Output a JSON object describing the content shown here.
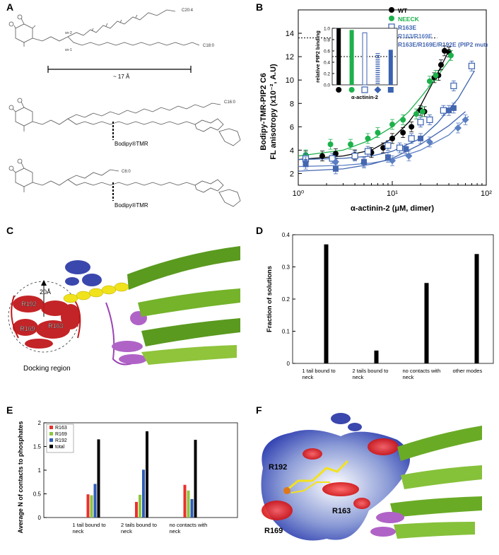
{
  "panel_labels": {
    "a": "A",
    "b": "B",
    "c": "C",
    "d": "D",
    "e": "E",
    "f": "F"
  },
  "panel_a": {
    "chain_labels_top": [
      "C20:4",
      "C18:0"
    ],
    "glycerol_marks": [
      "sn-2",
      "sn-1"
    ],
    "distance_label": "~ 17 Å",
    "chain_label_mid": "C16:0",
    "chain_label_bottom": "C6:0",
    "fluor_label": "Bodipy®TMR"
  },
  "panel_c": {
    "scale_label": "20Å",
    "residues": [
      "R192",
      "R169",
      "R163"
    ],
    "region_label": "Docking region"
  },
  "panel_f": {
    "residues": [
      "R192",
      "R169",
      "R163"
    ]
  },
  "chart_data": [
    {
      "id": "B",
      "type": "scatter",
      "xlabel": "α-actinin-2 (μM, dimer)",
      "ylabel_line1": "Bodipy-TMR-PIP2 C6",
      "ylabel_line2": "FL anisotropy (x10⁻², A.U)",
      "xscale": "log",
      "xlim": [
        1,
        100
      ],
      "ylim": [
        1,
        16
      ],
      "xticks": [
        "10⁰",
        "10¹",
        "10²"
      ],
      "yticks": [
        "2",
        "4",
        "6",
        "8",
        "10",
        "12",
        "14"
      ],
      "legend": [
        "WT",
        "NEECK",
        "R163E",
        "R163/R169E",
        "R163E/R169E/R192E (PIP2 mut)"
      ],
      "series": [
        {
          "name": "WT",
          "color": "#000000",
          "marker": "circle-filled",
          "x": [
            1.2,
            1.8,
            2.5,
            4,
            6,
            8,
            10,
            13,
            16,
            20,
            22,
            28,
            31,
            33,
            36,
            40
          ],
          "y": [
            3.5,
            3.5,
            3.7,
            3.6,
            3.8,
            4.2,
            5,
            5.5,
            6,
            7.4,
            7.3,
            10.2,
            10.4,
            11.3,
            12.5,
            12.4
          ]
        },
        {
          "name": "NEECK",
          "color": "#1db14b",
          "marker": "circle-filled",
          "x": [
            1.2,
            2.2,
            3.6,
            5.5,
            7,
            10,
            13,
            18,
            21,
            25,
            29,
            42
          ],
          "y": [
            3.6,
            4.5,
            4.5,
            5,
            5.5,
            6.2,
            6.6,
            7.1,
            7.3,
            9.9,
            10.4,
            12.1
          ]
        },
        {
          "name": "R163E",
          "color": "#3a62b0",
          "marker": "square-open",
          "x": [
            1.2,
            2.3,
            4,
            5.5,
            9,
            12,
            16,
            20,
            25,
            35,
            45,
            70
          ],
          "y": [
            3.3,
            3.3,
            3.5,
            3.9,
            4.4,
            4.2,
            5,
            6.4,
            6.6,
            7.4,
            9.5,
            11.2
          ]
        },
        {
          "name": "R163/R169E",
          "color": "#5b7fc4",
          "marker": "diamond-filled",
          "x": [
            1.2,
            2.5,
            5,
            10,
            15,
            25,
            50,
            60
          ],
          "y": [
            3.0,
            3.0,
            2.9,
            3.1,
            3.5,
            4.7,
            5.9,
            6.6
          ]
        },
        {
          "name": "R163E/R169E/R192E (PIP2 mut)",
          "color": "#4466b0",
          "marker": "square-filled",
          "x": [
            1.2,
            2.5,
            5,
            9,
            14,
            20,
            40,
            45
          ],
          "y": [
            2.8,
            2.4,
            3.0,
            3.4,
            4.1,
            5.0,
            7.4,
            7.6
          ]
        }
      ],
      "fits": [
        {
          "name": "WT",
          "color": "#000000",
          "x": [
            1,
            3,
            6,
            10,
            15,
            20,
            30,
            40
          ],
          "y": [
            3.2,
            3.5,
            4.0,
            5.0,
            6.4,
            7.8,
            10.5,
            12.5
          ]
        },
        {
          "name": "NEECK",
          "color": "#1db14b",
          "x": [
            1,
            3,
            6,
            10,
            15,
            20,
            30,
            45
          ],
          "y": [
            3.5,
            4.0,
            4.9,
            6.0,
            7.3,
            8.5,
            10.3,
            12.2
          ]
        },
        {
          "name": "R163E",
          "color": "#3a62b0",
          "x": [
            1,
            3,
            6,
            10,
            20,
            30,
            50,
            75
          ],
          "y": [
            3.2,
            3.3,
            3.5,
            3.9,
            5.0,
            6.3,
            8.4,
            10.8
          ]
        },
        {
          "name": "R163/R169E",
          "color": "#5b7fc4",
          "x": [
            1,
            3,
            6,
            10,
            20,
            40,
            65
          ],
          "y": [
            2.6,
            2.7,
            2.9,
            3.2,
            4.0,
            5.3,
            6.9
          ]
        },
        {
          "name": "R163E/R169E/R192E (PIP2 mut)",
          "color": "#4466b0",
          "x": [
            1,
            3,
            6,
            10,
            20,
            40,
            60
          ],
          "y": [
            2.2,
            2.4,
            2.8,
            3.3,
            4.5,
            6.1,
            7.3
          ]
        }
      ],
      "dotted_line_y": 13.6,
      "inset": {
        "type": "bar",
        "ylabel": "relative PIP2 binding",
        "xlabel": "α-actinin-2",
        "ylim": [
          0,
          1.0
        ],
        "yticks": [
          "0.0",
          "0.2",
          "0.4",
          "0.6",
          "0.8",
          "1.0"
        ],
        "dotted_y": 0.5,
        "values": [
          1.0,
          0.97,
          0.92,
          0.56,
          0.62
        ],
        "styles": [
          "black-solid",
          "green-solid",
          "blue-open",
          "blue-hatched",
          "blue-solid"
        ],
        "markers": [
          "circle-filled-black",
          "circle-filled-green",
          "square-open-blue",
          "diamond-filled-blue",
          "square-filled-blue"
        ]
      }
    },
    {
      "id": "D",
      "type": "bar",
      "ylabel": "Fraction of solutions",
      "categories": [
        "1 tail bound to neck",
        "2 tails bound to neck",
        "no contacts with neck",
        "other modes"
      ],
      "values": [
        0.37,
        0.04,
        0.25,
        0.34
      ],
      "ylim": [
        0,
        0.4
      ],
      "yticks": [
        "0",
        "0.1",
        "0.2",
        "0.3",
        "0.4"
      ]
    },
    {
      "id": "E",
      "type": "bar",
      "ylabel": "Average N of contacts to phosphates",
      "categories": [
        "1 tail bound to neck",
        "2 tails bound to neck",
        "no contacts with neck"
      ],
      "ylim": [
        0,
        2
      ],
      "yticks": [
        "0",
        "0.5",
        "1",
        "1.5",
        "2"
      ],
      "legend_position": "top-left",
      "series": [
        {
          "name": "R163",
          "color": "#e8312a",
          "values": [
            0.49,
            0.33,
            0.69
          ]
        },
        {
          "name": "R169",
          "color": "#8cc63f",
          "values": [
            0.47,
            0.48,
            0.57
          ]
        },
        {
          "name": "R192",
          "color": "#2e5cb8",
          "values": [
            0.71,
            1.01,
            0.39
          ]
        },
        {
          "name": "total",
          "color": "#000000",
          "values": [
            1.65,
            1.82,
            1.64
          ]
        }
      ]
    }
  ]
}
